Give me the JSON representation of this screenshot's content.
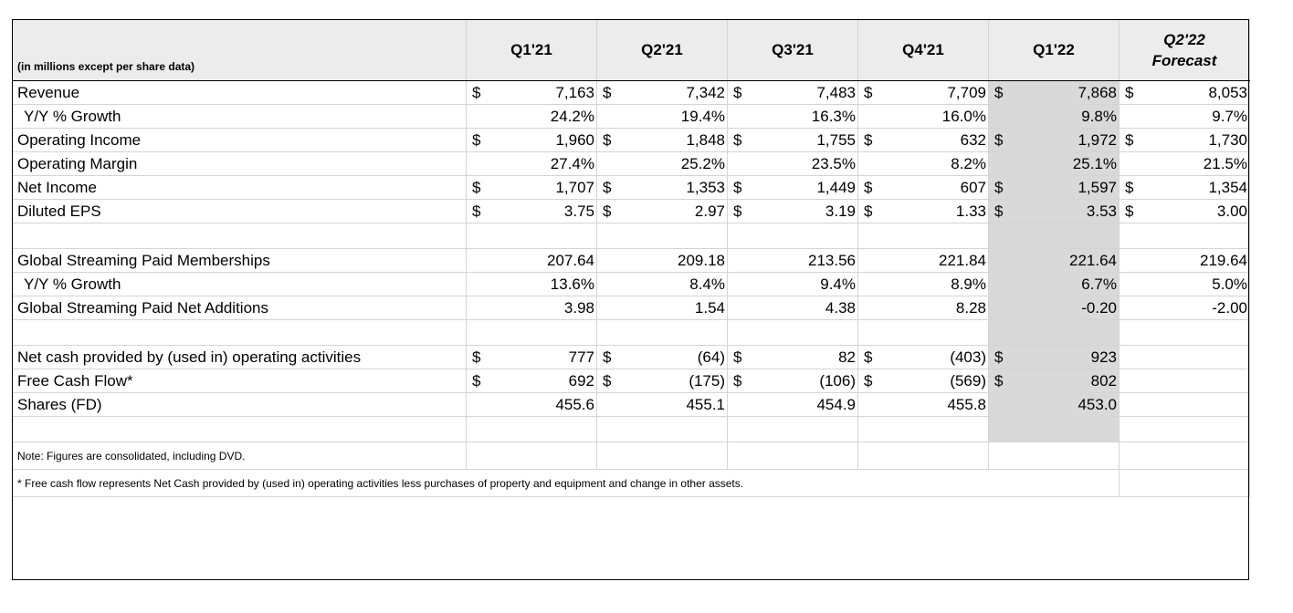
{
  "header": {
    "unit_note": "(in millions except per share data)",
    "periods": [
      "Q1'21",
      "Q2'21",
      "Q3'21",
      "Q4'21",
      "Q1'22"
    ],
    "forecast_period": "Q2'22",
    "forecast_label": "Forecast"
  },
  "currency_symbol": "$",
  "rows": [
    {
      "label": "Revenue",
      "indent": false,
      "currency": true,
      "values": [
        "7,163",
        "7,342",
        "7,483",
        "7,709",
        "7,868",
        "8,053"
      ]
    },
    {
      "label": "Y/Y % Growth",
      "indent": true,
      "currency": false,
      "values": [
        "24.2%",
        "19.4%",
        "16.3%",
        "16.0%",
        "9.8%",
        "9.7%"
      ]
    },
    {
      "label": "Operating Income",
      "indent": false,
      "currency": true,
      "values": [
        "1,960",
        "1,848",
        "1,755",
        "632",
        "1,972",
        "1,730"
      ]
    },
    {
      "label": "Operating Margin",
      "indent": false,
      "currency": false,
      "values": [
        "27.4%",
        "25.2%",
        "23.5%",
        "8.2%",
        "25.1%",
        "21.5%"
      ]
    },
    {
      "label": "Net Income",
      "indent": false,
      "currency": true,
      "values": [
        "1,707",
        "1,353",
        "1,449",
        "607",
        "1,597",
        "1,354"
      ]
    },
    {
      "label": "Diluted EPS",
      "indent": false,
      "currency": true,
      "values": [
        "3.75",
        "2.97",
        "3.19",
        "1.33",
        "3.53",
        "3.00"
      ]
    },
    {
      "gap": true
    },
    {
      "label": "Global Streaming Paid Memberships",
      "indent": false,
      "currency": false,
      "values": [
        "207.64",
        "209.18",
        "213.56",
        "221.84",
        "221.64",
        "219.64"
      ]
    },
    {
      "label": "Y/Y % Growth",
      "indent": true,
      "currency": false,
      "values": [
        "13.6%",
        "8.4%",
        "9.4%",
        "8.9%",
        "6.7%",
        "5.0%"
      ]
    },
    {
      "label": "Global Streaming Paid Net Additions",
      "indent": false,
      "currency": false,
      "values": [
        "3.98",
        "1.54",
        "4.38",
        "8.28",
        "-0.20",
        "-2.00"
      ]
    },
    {
      "gap": true
    },
    {
      "label": "Net cash provided by (used in) operating activities",
      "indent": false,
      "currency": true,
      "values": [
        "777",
        "(64)",
        "82",
        "(403)",
        "923",
        ""
      ]
    },
    {
      "label": "Free Cash Flow*",
      "indent": false,
      "currency": true,
      "values": [
        "692",
        "(175)",
        "(106)",
        "(569)",
        "802",
        ""
      ]
    },
    {
      "label": "Shares (FD)",
      "indent": false,
      "currency": false,
      "values": [
        "455.6",
        "455.1",
        "454.9",
        "455.8",
        "453.0",
        ""
      ]
    },
    {
      "gap": true
    }
  ],
  "notes": [
    "Note: Figures are consolidated, including DVD.",
    "* Free cash flow represents Net Cash provided by (used in) operating activities less purchases of property and equipment and change in other assets."
  ]
}
